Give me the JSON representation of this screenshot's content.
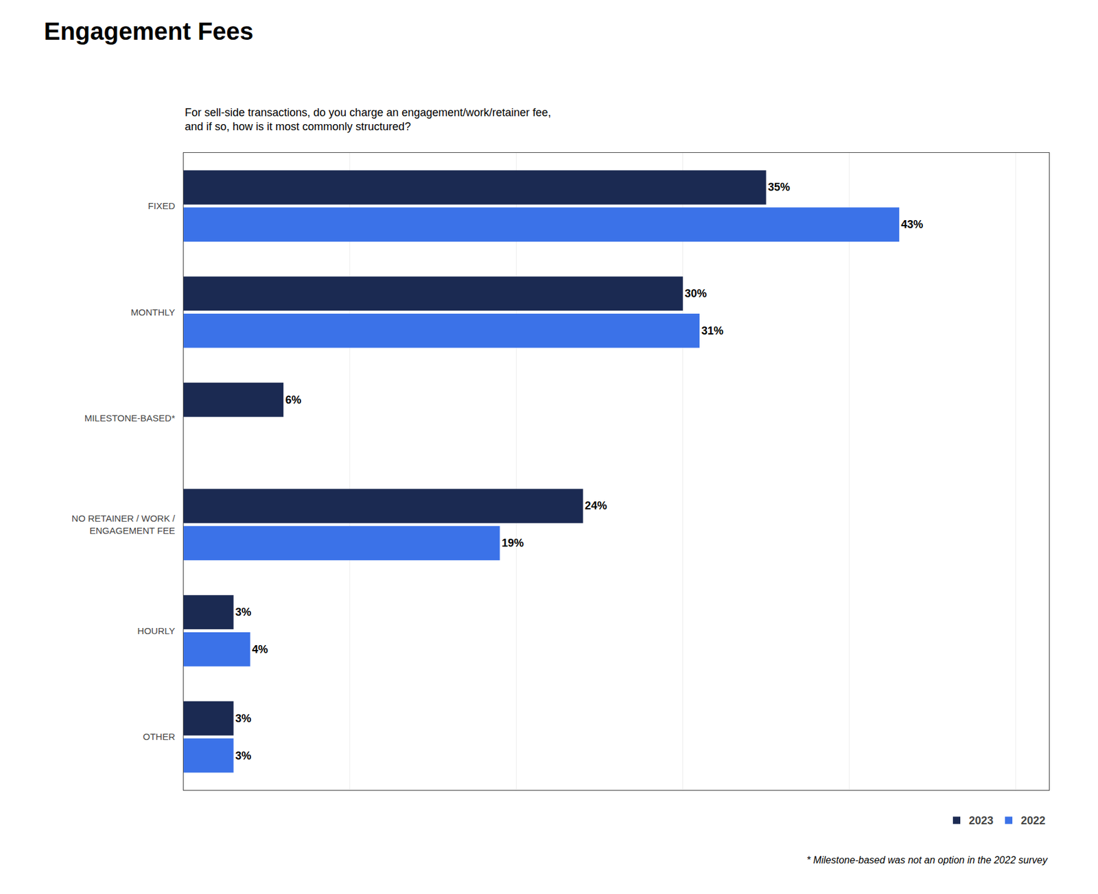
{
  "chart_data": {
    "type": "bar",
    "orientation": "horizontal",
    "title": "Engagement Fees",
    "subtitle": "For sell-side transactions, do you charge an engagement/work/retainer fee,\nand if so, how is it most commonly structured?",
    "annotations": [
      "* Milestone-based was not an option in the 2022 survey"
    ],
    "categories": [
      "FIXED",
      "MONTHLY",
      "MILESTONE-BASED*",
      "NO RETAINER / WORK /\nENGAGEMENT FEE",
      "HOURLY",
      "OTHER"
    ],
    "series": [
      {
        "name": "2023",
        "color": "#1b2a52",
        "values": [
          35,
          30,
          6,
          24,
          3,
          3
        ],
        "value_labels": [
          "35%",
          "30%",
          "6%",
          "24%",
          "3%",
          "3%"
        ]
      },
      {
        "name": "2022",
        "color": "#3b72e8",
        "values": [
          43,
          31,
          null,
          19,
          4,
          3
        ],
        "value_labels": [
          "43%",
          "31%",
          null,
          "19%",
          "4%",
          "3%"
        ]
      }
    ],
    "xlim": [
      0,
      52
    ],
    "xticks": [
      0,
      10,
      20,
      30,
      40,
      50
    ],
    "grid": true,
    "legend": "lower right",
    "data_labels": true,
    "tick_labels": "y"
  }
}
